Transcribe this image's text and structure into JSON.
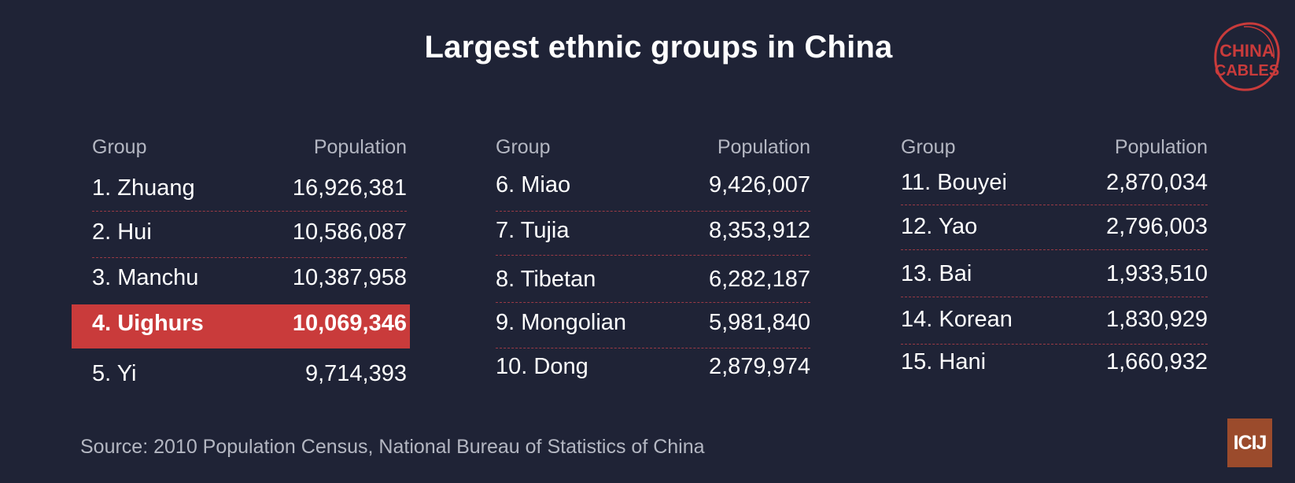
{
  "header": {
    "title": "Largest ethnic groups in China"
  },
  "logo": {
    "line1": "CHINA",
    "line2": "CABLES",
    "color": "#c93b3b"
  },
  "footer": {
    "source": "Source: 2010 Population Census, National Bureau of Statistics of China",
    "badge": "ICIJ",
    "badge_color": "#9b4b2c"
  },
  "chart_data": {
    "type": "table",
    "title": "Largest ethnic groups in China",
    "column_headers": [
      "Group",
      "Population"
    ],
    "highlight_color": "#c93b3b",
    "columns": [
      {
        "header_group": "Group",
        "header_population": "Population",
        "rows": [
          {
            "group": "1. Zhuang",
            "population": "16,926,381",
            "highlight": false
          },
          {
            "group": "2. Hui",
            "population": "10,586,087",
            "highlight": false
          },
          {
            "group": "3. Manchu",
            "population": "10,387,958",
            "highlight": false
          },
          {
            "group": "4. Uighurs",
            "population": "10,069,346",
            "highlight": true
          },
          {
            "group": "5. Yi",
            "population": "9,714,393",
            "highlight": false
          }
        ]
      },
      {
        "header_group": "Group",
        "header_population": "Population",
        "rows": [
          {
            "group": "6. Miao",
            "population": "9,426,007",
            "highlight": false
          },
          {
            "group": "7. Tujia",
            "population": "8,353,912",
            "highlight": false
          },
          {
            "group": "8. Tibetan",
            "population": "6,282,187",
            "highlight": false
          },
          {
            "group": "9. Mongolian",
            "population": "5,981,840",
            "highlight": false
          },
          {
            "group": "10. Dong",
            "population": "2,879,974",
            "highlight": false
          }
        ]
      },
      {
        "header_group": "Group",
        "header_population": "Population",
        "rows": [
          {
            "group": "11. Bouyei",
            "population": "2,870,034",
            "highlight": false
          },
          {
            "group": "12. Yao",
            "population": "2,796,003",
            "highlight": false
          },
          {
            "group": "13. Bai",
            "population": "1,933,510",
            "highlight": false
          },
          {
            "group": "14. Korean",
            "population": "1,830,929",
            "highlight": false
          },
          {
            "group": "15. Hani",
            "population": "1,660,932",
            "highlight": false
          }
        ]
      }
    ]
  }
}
